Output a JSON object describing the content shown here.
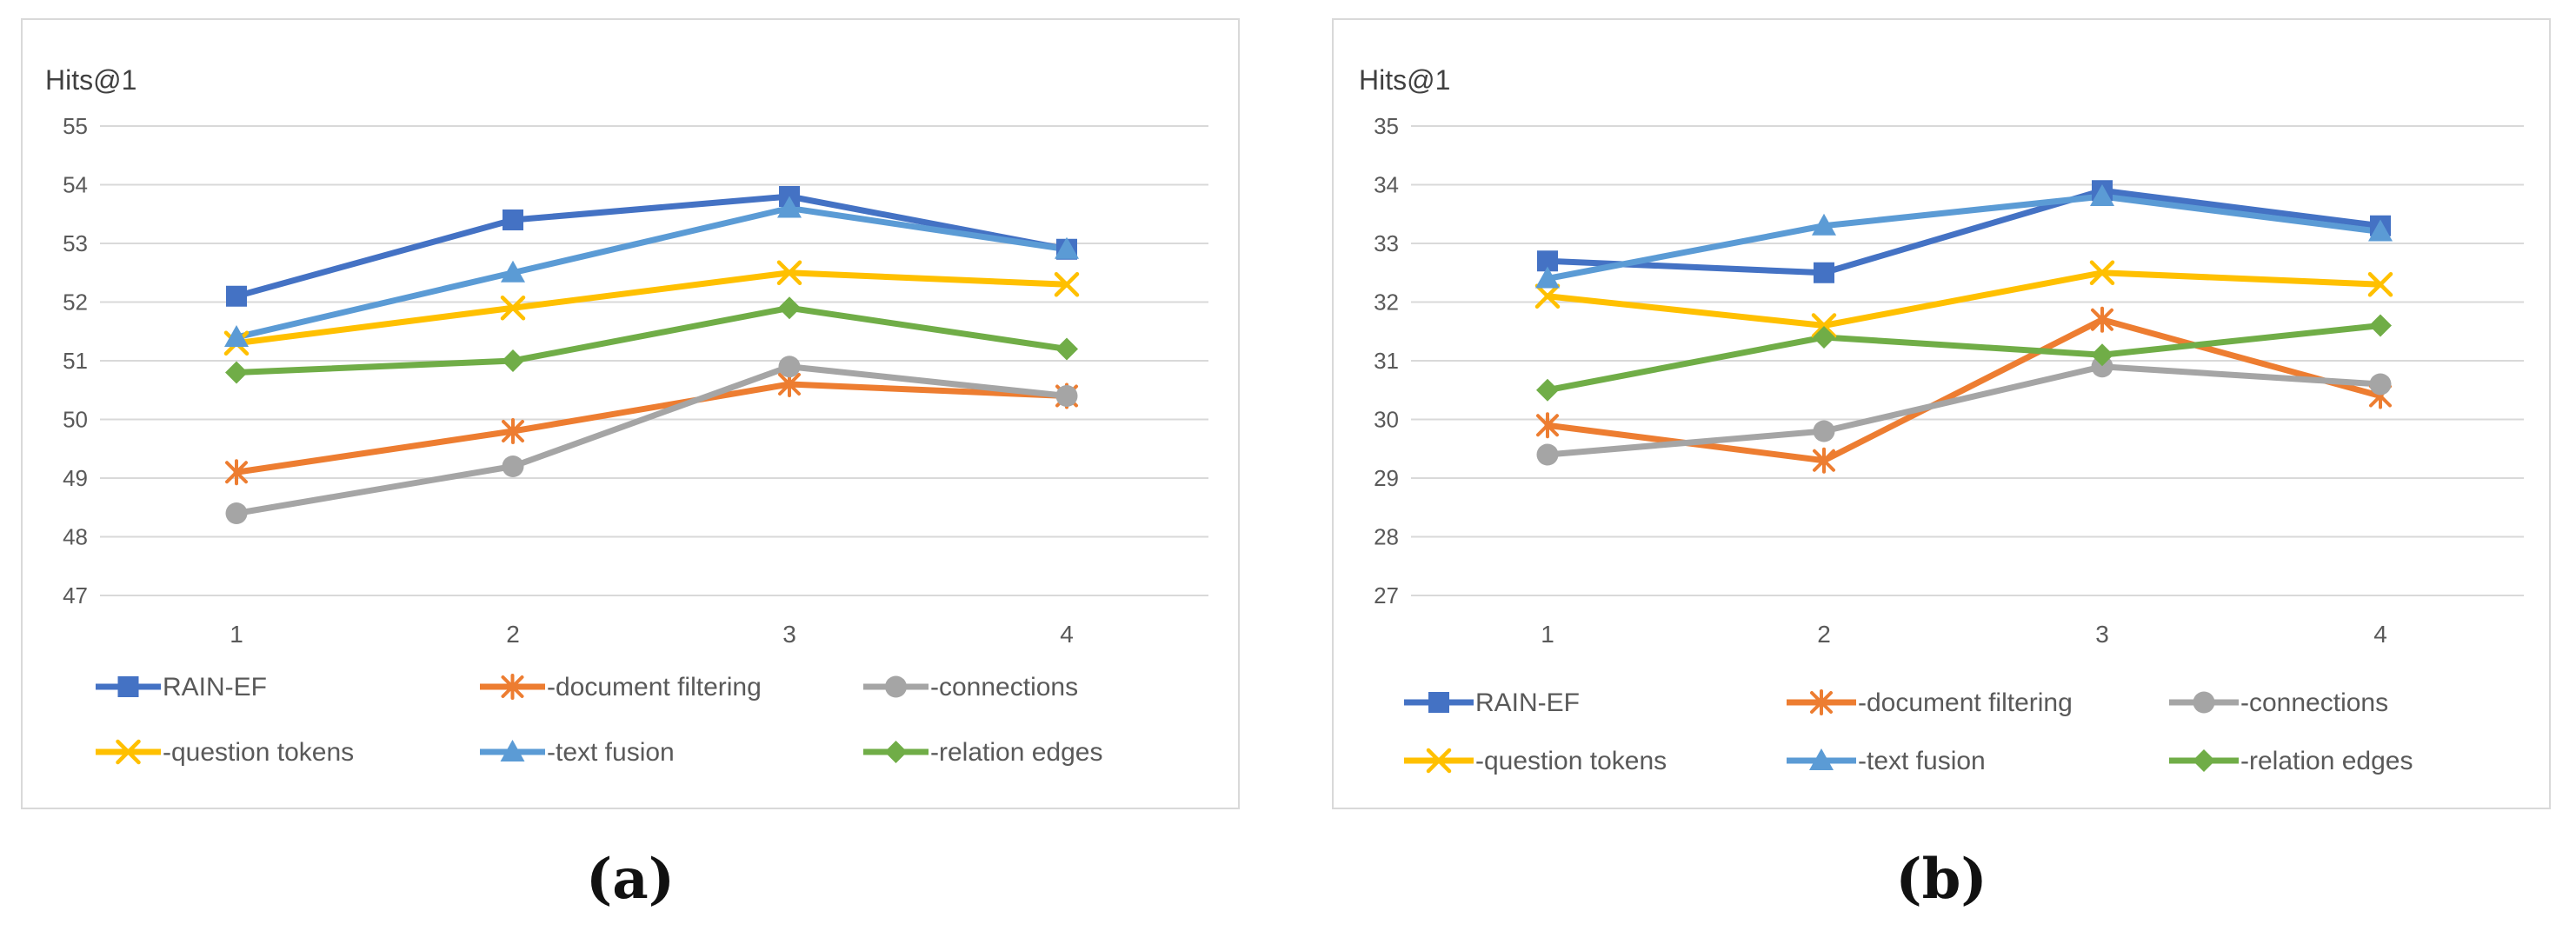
{
  "colors": {
    "rain_ef": "#4472C4",
    "document_filtering": "#ED7D31",
    "connections": "#A5A5A5",
    "question_tokens": "#FFC000",
    "text_fusion": "#5B9BD5",
    "relation_edges": "#70AD47",
    "grid": "#D9D9D9",
    "panel_border": "#D9D9D9",
    "tick_text": "#595959",
    "axis_title_text": "#404040"
  },
  "chart_data": [
    {
      "type": "line",
      "panel": "a",
      "caption": "(a)",
      "title": "",
      "ylabel": "Hits@1",
      "xlabel": "",
      "categories": [
        "1",
        "2",
        "3",
        "4"
      ],
      "ylim": [
        47,
        55
      ],
      "yticks": [
        "47",
        "48",
        "49",
        "50",
        "51",
        "52",
        "53",
        "54",
        "55"
      ],
      "grid": true,
      "legend_position": "bottom",
      "series": [
        {
          "name": "RAIN-EF",
          "key": "rain_ef",
          "marker": "square",
          "values": [
            52.1,
            53.4,
            53.8,
            52.9
          ]
        },
        {
          "name": "-document filtering",
          "key": "document_filtering",
          "marker": "star",
          "values": [
            49.1,
            49.8,
            50.6,
            50.4
          ]
        },
        {
          "name": "-connections",
          "key": "connections",
          "marker": "circle",
          "values": [
            48.4,
            49.2,
            50.9,
            50.4
          ]
        },
        {
          "name": "-question tokens",
          "key": "question_tokens",
          "marker": "x",
          "values": [
            51.3,
            51.9,
            52.5,
            52.3
          ]
        },
        {
          "name": "-text fusion",
          "key": "text_fusion",
          "marker": "triangle",
          "values": [
            51.4,
            52.5,
            53.6,
            52.9
          ]
        },
        {
          "name": "-relation edges",
          "key": "relation_edges",
          "marker": "diamond",
          "values": [
            50.8,
            51.0,
            51.9,
            51.2
          ]
        }
      ]
    },
    {
      "type": "line",
      "panel": "b",
      "caption": "(b)",
      "title": "",
      "ylabel": "Hits@1",
      "xlabel": "",
      "categories": [
        "1",
        "2",
        "3",
        "4"
      ],
      "ylim": [
        27,
        35
      ],
      "yticks": [
        "27",
        "28",
        "29",
        "30",
        "31",
        "32",
        "33",
        "34",
        "35"
      ],
      "grid": true,
      "legend_position": "bottom",
      "series": [
        {
          "name": "RAIN-EF",
          "key": "rain_ef",
          "marker": "square",
          "values": [
            32.7,
            32.5,
            33.9,
            33.3
          ]
        },
        {
          "name": "-document filtering",
          "key": "document_filtering",
          "marker": "star",
          "values": [
            29.9,
            29.3,
            31.7,
            30.4
          ]
        },
        {
          "name": "-connections",
          "key": "connections",
          "marker": "circle",
          "values": [
            29.4,
            29.8,
            30.9,
            30.6
          ]
        },
        {
          "name": "-question tokens",
          "key": "question_tokens",
          "marker": "x",
          "values": [
            32.1,
            31.6,
            32.5,
            32.3
          ]
        },
        {
          "name": "-text fusion",
          "key": "text_fusion",
          "marker": "triangle",
          "values": [
            32.4,
            33.3,
            33.8,
            33.2
          ]
        },
        {
          "name": "-relation edges",
          "key": "relation_edges",
          "marker": "diamond",
          "values": [
            30.5,
            31.4,
            31.1,
            31.6
          ]
        }
      ]
    }
  ]
}
